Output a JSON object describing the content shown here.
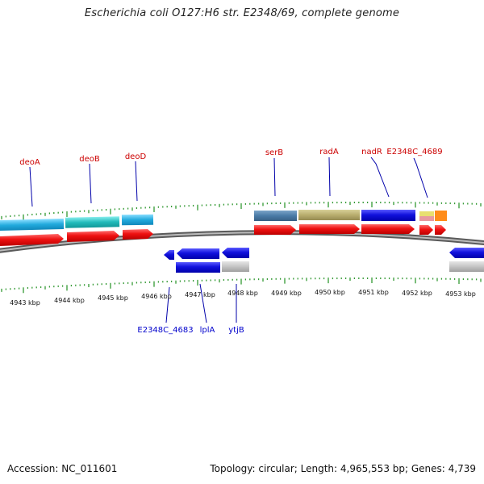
{
  "title": "Escherichia coli O127:H6 str. E2348/69, complete genome",
  "footer": {
    "accession": "Accession: NC_011601",
    "summary": "Topology: circular; Length: 4,965,553 bp; Genes: 4,739"
  },
  "axis": {
    "unit": "kbp",
    "labels": [
      "4943 kbp",
      "4944 kbp",
      "4945 kbp",
      "4946 kbp",
      "4947 kbp",
      "4948 kbp",
      "4949 kbp",
      "4950 kbp",
      "4951 kbp",
      "4952 kbp",
      "4953 kbp"
    ]
  },
  "genes_top": [
    "deoA",
    "deoB",
    "deoD",
    "serB",
    "radA",
    "nadR",
    "E2348C_4689"
  ],
  "genes_bottom": [
    "E2348C_4683",
    "lplA",
    "ytjB"
  ],
  "colors": {
    "forward_cds": "#ee1111",
    "reverse_cds": "#1111dd",
    "backbone": "#888888",
    "tick": "#339933",
    "label_top": "#cc0000",
    "label_bottom": "#0000cc"
  }
}
